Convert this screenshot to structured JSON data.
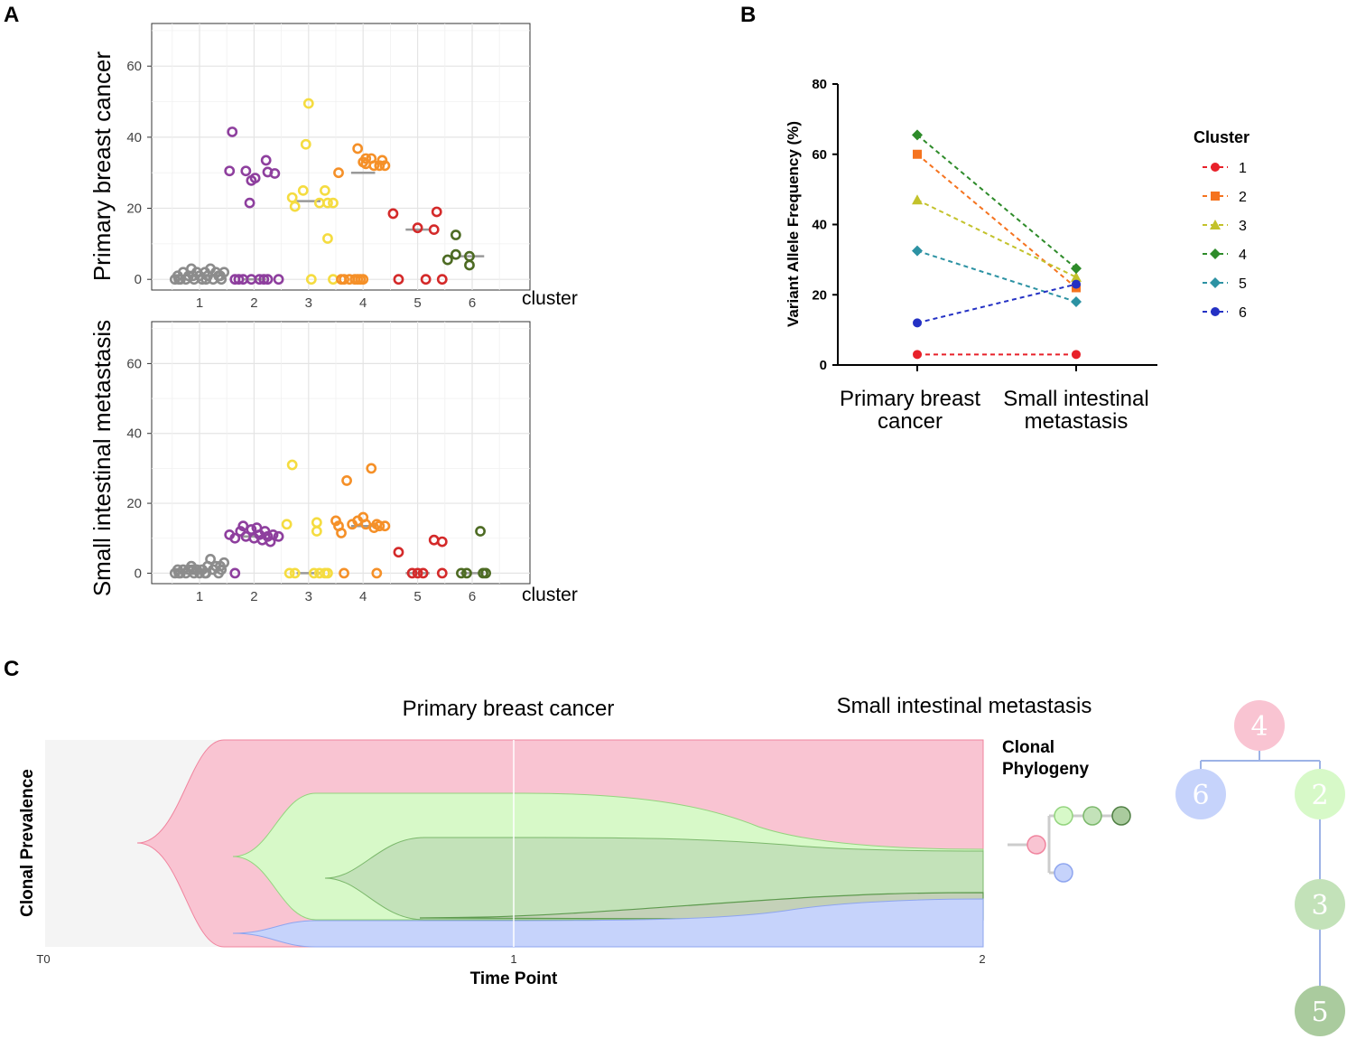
{
  "figure": {
    "panel_letters": {
      "a": "A",
      "b": "B",
      "c": "C"
    }
  },
  "chart_data": [
    {
      "id": "A-top",
      "type": "scatter",
      "title": "",
      "ylabel": "Primary breast cancer",
      "xlabel": "cluster",
      "categories": [
        "1",
        "2",
        "3",
        "4",
        "5",
        "6"
      ],
      "yticks": [
        "0",
        "20",
        "40",
        "60"
      ],
      "ylim": [
        -3,
        72
      ],
      "colors": [
        "#8c8c8c",
        "#8e3f9e",
        "#f5dc40",
        "#f59028",
        "#d42a2a",
        "#4d6b23"
      ],
      "points": [
        [
          [
            -0.45,
            0
          ],
          [
            -0.4,
            1
          ],
          [
            -0.35,
            0
          ],
          [
            -0.3,
            2
          ],
          [
            -0.25,
            0
          ],
          [
            -0.2,
            1
          ],
          [
            -0.15,
            3
          ],
          [
            -0.1,
            0
          ],
          [
            -0.05,
            2
          ],
          [
            0,
            1
          ],
          [
            0.05,
            0
          ],
          [
            0.1,
            2
          ],
          [
            0.15,
            1
          ],
          [
            0.2,
            3
          ],
          [
            0.25,
            0
          ],
          [
            0.3,
            2
          ],
          [
            0.35,
            1
          ],
          [
            0.4,
            0
          ],
          [
            0.45,
            2
          ],
          [
            -0.38,
            0
          ],
          [
            -0.12,
            1
          ],
          [
            0.12,
            0
          ],
          [
            0.38,
            1
          ]
        ],
        [
          [
            -0.4,
            41.5
          ],
          [
            -0.45,
            30.5
          ],
          [
            -0.15,
            30.5
          ],
          [
            -0.05,
            27.8
          ],
          [
            0.02,
            28.5
          ],
          [
            -0.08,
            21.5
          ],
          [
            0.22,
            33.5
          ],
          [
            0.25,
            30.2
          ],
          [
            0.38,
            29.8
          ],
          [
            -0.35,
            0
          ],
          [
            -0.2,
            0
          ],
          [
            -0.05,
            0
          ],
          [
            0.1,
            0
          ],
          [
            0.25,
            0
          ],
          [
            0.45,
            0
          ],
          [
            -0.28,
            0
          ],
          [
            0.18,
            0
          ]
        ],
        [
          [
            -0.3,
            23
          ],
          [
            -0.25,
            20.5
          ],
          [
            -0.1,
            25
          ],
          [
            -0.05,
            38
          ],
          [
            0,
            49.5
          ],
          [
            0.3,
            25
          ],
          [
            0.35,
            21.5
          ],
          [
            0.45,
            21.5
          ],
          [
            0.35,
            11.5
          ],
          [
            0.05,
            0
          ],
          [
            0.45,
            0
          ],
          [
            0.2,
            21.5
          ]
        ],
        [
          [
            -0.45,
            30
          ],
          [
            -0.1,
            36.8
          ],
          [
            0.05,
            34
          ],
          [
            0,
            33
          ],
          [
            0.05,
            32.5
          ],
          [
            0.15,
            34
          ],
          [
            0.2,
            32
          ],
          [
            0.3,
            32
          ],
          [
            0.35,
            33.5
          ],
          [
            0.4,
            32
          ],
          [
            -0.4,
            0
          ],
          [
            -0.35,
            0
          ],
          [
            -0.25,
            0
          ],
          [
            -0.15,
            0
          ],
          [
            -0.1,
            0
          ],
          [
            -0.05,
            0
          ],
          [
            0,
            0
          ]
        ],
        [
          [
            -0.45,
            18.5
          ],
          [
            0,
            14.5
          ],
          [
            0.3,
            14
          ],
          [
            0.35,
            19
          ],
          [
            -0.35,
            0
          ],
          [
            0.15,
            0
          ],
          [
            0.45,
            0
          ]
        ],
        [
          [
            -0.45,
            5.5
          ],
          [
            -0.3,
            7
          ],
          [
            -0.3,
            12.5
          ],
          [
            -0.05,
            6.5
          ],
          [
            -0.05,
            4
          ]
        ]
      ],
      "medians": [
        1,
        0,
        22,
        30,
        14,
        6.5
      ]
    },
    {
      "id": "A-bottom",
      "type": "scatter",
      "title": "",
      "ylabel": "Small intestinal metastasis",
      "xlabel": "cluster",
      "categories": [
        "1",
        "2",
        "3",
        "4",
        "5",
        "6"
      ],
      "yticks": [
        "0",
        "20",
        "40",
        "60"
      ],
      "ylim": [
        -3,
        72
      ],
      "colors": [
        "#8c8c8c",
        "#8e3f9e",
        "#f5dc40",
        "#f59028",
        "#d42a2a",
        "#4d6b23"
      ],
      "points": [
        [
          [
            -0.45,
            0
          ],
          [
            -0.4,
            1
          ],
          [
            -0.35,
            0
          ],
          [
            -0.3,
            1
          ],
          [
            -0.25,
            0
          ],
          [
            -0.2,
            1
          ],
          [
            -0.15,
            2
          ],
          [
            -0.1,
            0
          ],
          [
            -0.05,
            1
          ],
          [
            0,
            0
          ],
          [
            0.05,
            1
          ],
          [
            0.1,
            0
          ],
          [
            0.15,
            2
          ],
          [
            0.2,
            4
          ],
          [
            0.25,
            1
          ],
          [
            0.3,
            2
          ],
          [
            0.35,
            0
          ],
          [
            0.4,
            1
          ],
          [
            0.45,
            3
          ],
          [
            -0.38,
            0
          ],
          [
            -0.12,
            1
          ],
          [
            0.12,
            0
          ],
          [
            0.38,
            2
          ]
        ],
        [
          [
            -0.45,
            11
          ],
          [
            -0.35,
            10
          ],
          [
            -0.25,
            12
          ],
          [
            -0.2,
            13.5
          ],
          [
            -0.15,
            10.5
          ],
          [
            -0.05,
            12.5
          ],
          [
            0,
            10
          ],
          [
            0.05,
            13
          ],
          [
            0.1,
            11
          ],
          [
            0.15,
            9.5
          ],
          [
            0.2,
            12
          ],
          [
            0.25,
            10.5
          ],
          [
            0.3,
            9
          ],
          [
            0.35,
            11
          ],
          [
            0.45,
            10.5
          ],
          [
            -0.35,
            0
          ]
        ],
        [
          [
            -0.4,
            14
          ],
          [
            -0.3,
            31
          ],
          [
            -0.25,
            0
          ],
          [
            -0.35,
            0
          ],
          [
            0.15,
            12
          ],
          [
            0.15,
            14.5
          ],
          [
            0.1,
            0
          ],
          [
            0.3,
            0
          ],
          [
            0.35,
            0
          ],
          [
            0.2,
            0
          ]
        ],
        [
          [
            -0.5,
            15
          ],
          [
            -0.45,
            13.5
          ],
          [
            -0.4,
            11.5
          ],
          [
            -0.3,
            26.5
          ],
          [
            -0.2,
            14
          ],
          [
            -0.1,
            15
          ],
          [
            0,
            16
          ],
          [
            0.05,
            14
          ],
          [
            0.15,
            30
          ],
          [
            0.2,
            13
          ],
          [
            0.25,
            14
          ],
          [
            0.3,
            13.5
          ],
          [
            0.4,
            13.5
          ],
          [
            -0.35,
            0
          ],
          [
            0.25,
            0
          ]
        ],
        [
          [
            -0.35,
            6
          ],
          [
            -0.1,
            0
          ],
          [
            0,
            0
          ],
          [
            0.1,
            0
          ],
          [
            0.3,
            9.5
          ],
          [
            0.45,
            9
          ],
          [
            0.45,
            0
          ]
        ],
        [
          [
            -0.2,
            0
          ],
          [
            -0.1,
            0
          ],
          [
            0.15,
            12
          ],
          [
            0.2,
            0
          ],
          [
            0.25,
            0
          ]
        ]
      ],
      "medians": [
        0.5,
        10.5,
        0,
        13.5,
        0,
        0
      ]
    },
    {
      "id": "B",
      "type": "line",
      "categories": [
        "Primary breast cancer",
        "Small intestinal metastasis"
      ],
      "category_lines": [
        [
          "Primary breast",
          "cancer"
        ],
        [
          "Small intestinal",
          "metastasis"
        ]
      ],
      "ylabel": "Variant Allele Frequency (%)",
      "ylim": [
        0,
        80
      ],
      "yticks": [
        "0",
        "20",
        "40",
        "60",
        "80"
      ],
      "legend_title": "Cluster",
      "series": [
        {
          "name": "1",
          "values": [
            3,
            3
          ],
          "color": "#e8212a",
          "marker": "circle"
        },
        {
          "name": "2",
          "values": [
            60,
            22
          ],
          "color": "#f5731f",
          "marker": "square"
        },
        {
          "name": "3",
          "values": [
            47,
            25
          ],
          "color": "#c3c22b",
          "marker": "triangle"
        },
        {
          "name": "4",
          "values": [
            65.5,
            27.5
          ],
          "color": "#2e8b2a",
          "marker": "diamond"
        },
        {
          "name": "5",
          "values": [
            32.5,
            18
          ],
          "color": "#2c92a3",
          "marker": "diamond"
        },
        {
          "name": "6",
          "values": [
            12,
            23
          ],
          "color": "#2431c4",
          "marker": "circle"
        }
      ]
    },
    {
      "id": "C",
      "type": "area",
      "headers": [
        "Primary breast cancer",
        "Small intestinal metastasis"
      ],
      "ylabel": "Clonal Prevalence",
      "xlabel": "Time Point",
      "x_ticks": [
        "T0",
        "1",
        "2"
      ],
      "phylogeny_label": [
        "Clonal",
        "Phylogeny"
      ],
      "clones": [
        {
          "name": "4",
          "color": "#f9c4d2",
          "prevalence": [
            100,
            25.5
          ]
        },
        {
          "name": "2",
          "color": "#d7f9c8",
          "prevalence": [
            35,
            0
          ]
        },
        {
          "name": "3",
          "color": "#c3e2b9",
          "prevalence": [
            3,
            3
          ]
        },
        {
          "name": "5",
          "color": "#c4d1b8",
          "prevalence": [
            0,
            21
          ]
        },
        {
          "name": "6",
          "color": "#c6d3fb",
          "prevalence": [
            12.5,
            23
          ]
        }
      ],
      "tree_nodes": [
        "4",
        "6",
        "2",
        "3",
        "5"
      ]
    }
  ]
}
